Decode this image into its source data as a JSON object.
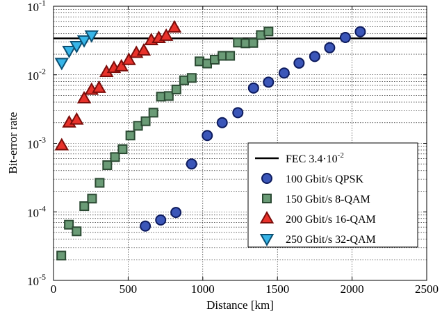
{
  "chart_data": {
    "type": "scatter",
    "xlabel": "Distance [km]",
    "ylabel": "Bit-error rate",
    "xlim": [
      0,
      2500
    ],
    "ylim": [
      1e-05,
      0.1
    ],
    "yscale": "log",
    "grid": true,
    "legend_position": "bottom-right",
    "x_ticks": [
      0,
      500,
      1000,
      1500,
      2000,
      2500
    ],
    "x_tick_labels": [
      "0",
      "500",
      "1000",
      "1500",
      "2000",
      "2500"
    ],
    "y_ticks": [
      {
        "value": 0.1,
        "base": "10",
        "exp": "-1"
      },
      {
        "value": 0.01,
        "base": "10",
        "exp": "-2"
      },
      {
        "value": 0.001,
        "base": "10",
        "exp": "-3"
      },
      {
        "value": 0.0001,
        "base": "10",
        "exp": "-4"
      },
      {
        "value": 1e-05,
        "base": "10",
        "exp": "-5"
      }
    ],
    "threshold": {
      "label_main": "FEC 3.4·10",
      "label_exp": "-2",
      "value": 0.034,
      "color": "#000000"
    },
    "series": [
      {
        "name": "100 Gbit/s QPSK",
        "marker": "circle",
        "fill": "#3b56b8",
        "stroke": "#0d1b5e",
        "points": [
          [
            615,
            6.2e-05
          ],
          [
            718,
            7.6e-05
          ],
          [
            820,
            9.8e-05
          ],
          [
            925,
            0.0005
          ],
          [
            1030,
            0.0013
          ],
          [
            1130,
            0.002
          ],
          [
            1235,
            0.0028
          ],
          [
            1340,
            0.0064
          ],
          [
            1440,
            0.0078
          ],
          [
            1545,
            0.0106
          ],
          [
            1645,
            0.0148
          ],
          [
            1750,
            0.0185
          ],
          [
            1850,
            0.0248
          ],
          [
            1955,
            0.035
          ],
          [
            2055,
            0.0425
          ]
        ]
      },
      {
        "name": "150 Gbit/s 8-QAM",
        "marker": "square",
        "fill": "#6a9b76",
        "stroke": "#2b4a33",
        "points": [
          [
            52,
            2.3e-05
          ],
          [
            103,
            6.5e-05
          ],
          [
            155,
            5.2e-05
          ],
          [
            206,
            0.000121
          ],
          [
            258,
            0.000156
          ],
          [
            309,
            0.000265
          ],
          [
            360,
            0.00048
          ],
          [
            412,
            0.00063
          ],
          [
            463,
            0.00082
          ],
          [
            515,
            0.0013
          ],
          [
            566,
            0.0018
          ],
          [
            617,
            0.0021
          ],
          [
            669,
            0.0028
          ],
          [
            720,
            0.0048
          ],
          [
            772,
            0.0049
          ],
          [
            823,
            0.0061
          ],
          [
            875,
            0.0083
          ],
          [
            926,
            0.009
          ],
          [
            978,
            0.0157
          ],
          [
            1029,
            0.0146
          ],
          [
            1080,
            0.0166
          ],
          [
            1132,
            0.0189
          ],
          [
            1183,
            0.0189
          ],
          [
            1235,
            0.0295
          ],
          [
            1286,
            0.0288
          ],
          [
            1338,
            0.0292
          ],
          [
            1389,
            0.038
          ],
          [
            1440,
            0.0428
          ]
        ]
      },
      {
        "name": "200 Gbit/s 16-QAM",
        "marker": "triangle-up",
        "fill": "#e8322b",
        "stroke": "#7a0d0a",
        "points": [
          [
            55,
            0.00093
          ],
          [
            105,
            0.002
          ],
          [
            155,
            0.0022
          ],
          [
            205,
            0.0045
          ],
          [
            255,
            0.006
          ],
          [
            305,
            0.0064
          ],
          [
            355,
            0.0109
          ],
          [
            405,
            0.0125
          ],
          [
            455,
            0.0132
          ],
          [
            505,
            0.0163
          ],
          [
            555,
            0.0207
          ],
          [
            605,
            0.0224
          ],
          [
            655,
            0.0318
          ],
          [
            705,
            0.0342
          ],
          [
            755,
            0.0368
          ],
          [
            810,
            0.0487
          ]
        ]
      },
      {
        "name": "250 Gbit/s 32-QAM",
        "marker": "triangle-down",
        "fill": "#37b5e8",
        "stroke": "#0b4f72",
        "points": [
          [
            55,
            0.015
          ],
          [
            105,
            0.0225
          ],
          [
            155,
            0.0265
          ],
          [
            205,
            0.032
          ],
          [
            255,
            0.0378
          ]
        ]
      }
    ]
  }
}
